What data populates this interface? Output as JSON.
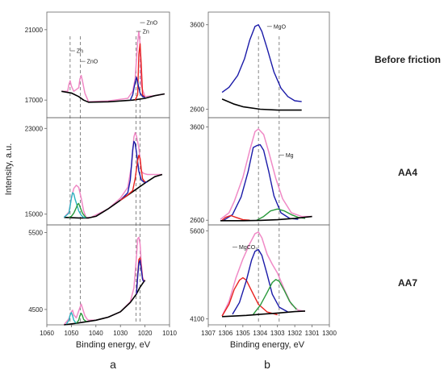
{
  "figure": {
    "panel_letters": [
      "a",
      "b"
    ],
    "row_labels": [
      "Before friction",
      "AA4",
      "AA7"
    ],
    "y_axis_label": "Intensity, a.u.",
    "x_axis_label_left": "Binding energy, eV",
    "x_axis_label_right": "Binding energy, eV"
  },
  "colors": {
    "envelope": "#f08ac6",
    "background": "#000000",
    "component_red": "#e8221f",
    "component_blue": "#1a1aa8",
    "component_green": "#2a9a3c",
    "component_cyan": "#2ab5c0",
    "guide": "#555555"
  },
  "chart_data": [
    {
      "type": "line",
      "panel": "a",
      "row": "Before friction",
      "xlim": [
        1060,
        1010
      ],
      "ylim": [
        16000,
        22000
      ],
      "yticks": [
        17000,
        21000
      ],
      "yticklabels": [
        "17000",
        "21000"
      ],
      "annotations": [
        {
          "text": "Zn",
          "x": 1050.5,
          "y": 19800
        },
        {
          "text": "ZnO",
          "x": 1046.3,
          "y": 19200
        },
        {
          "text": "Zn",
          "x": 1023.6,
          "y": 20900
        },
        {
          "text": "ZnO",
          "x": 1022,
          "y": 21400
        }
      ],
      "series": [
        {
          "role": "envelope",
          "color": "#f08ac6",
          "x": [
            1054,
            1051.5,
            1051,
            1050.5,
            1050,
            1049,
            1047,
            1046.5,
            1046,
            1045.5,
            1044.5,
            1043,
            1035,
            1027,
            1025,
            1024,
            1023,
            1022.5,
            1022,
            1021.5,
            1020,
            1016,
            1012
          ],
          "y": [
            17500,
            17500,
            17900,
            18100,
            17800,
            17500,
            17700,
            18200,
            18400,
            18100,
            17400,
            16900,
            16950,
            17100,
            17500,
            18200,
            20300,
            20900,
            20200,
            17800,
            17200,
            17250,
            17350
          ]
        },
        {
          "role": "background",
          "color": "#000000",
          "x": [
            1054,
            1050,
            1047,
            1045,
            1043,
            1035,
            1025,
            1020,
            1016,
            1012
          ],
          "y": [
            17500,
            17400,
            17200,
            17000,
            16880,
            16900,
            17000,
            17100,
            17250,
            17350
          ]
        },
        {
          "role": "component",
          "color": "#e8221f",
          "x": [
            1024,
            1023,
            1022.5,
            1022,
            1021.5,
            1021,
            1020
          ],
          "y": [
            17000,
            17300,
            19600,
            20200,
            19000,
            17300,
            17150
          ]
        },
        {
          "role": "component",
          "color": "#1a1aa8",
          "x": [
            1026,
            1025,
            1024,
            1023.5,
            1023,
            1022,
            1021,
            1020
          ],
          "y": [
            17000,
            17300,
            18000,
            18300,
            18000,
            17400,
            17200,
            17150
          ]
        }
      ]
    },
    {
      "type": "line",
      "panel": "a",
      "row": "AA4",
      "xlim": [
        1060,
        1010
      ],
      "ylim": [
        14000,
        24000
      ],
      "yticks": [
        15000,
        23000
      ],
      "yticklabels": [
        "15000",
        "23000"
      ],
      "annotations": [],
      "series": [
        {
          "role": "envelope",
          "color": "#f08ac6",
          "x": [
            1053,
            1051,
            1050,
            1049,
            1048,
            1047,
            1046,
            1045,
            1044,
            1042,
            1035,
            1030,
            1027,
            1025.5,
            1024.5,
            1024,
            1023.5,
            1022.5,
            1021.5,
            1020.5,
            1019,
            1016,
            1013
          ],
          "y": [
            14700,
            15200,
            16500,
            17400,
            17700,
            17500,
            16500,
            15300,
            14700,
            14700,
            15500,
            16500,
            17500,
            19500,
            22200,
            22600,
            22300,
            21200,
            19000,
            18800,
            18700,
            18700,
            18700
          ]
        },
        {
          "role": "background",
          "color": "#000000",
          "x": [
            1053,
            1047,
            1043,
            1040,
            1035,
            1030,
            1025,
            1020,
            1016,
            1013
          ],
          "y": [
            14700,
            14650,
            14650,
            14800,
            15500,
            16300,
            17100,
            17900,
            18500,
            18700
          ]
        },
        {
          "role": "component",
          "color": "#1a1aa8",
          "x": [
            1030,
            1027,
            1026,
            1025,
            1024.5,
            1024,
            1023.5,
            1022.5,
            1021.5,
            1020.5,
            1019
          ],
          "y": [
            16300,
            17000,
            18200,
            21000,
            21800,
            21600,
            20800,
            19000,
            18200,
            18000,
            18000
          ]
        },
        {
          "role": "component",
          "color": "#e8221f",
          "x": [
            1030,
            1027,
            1025,
            1024,
            1023,
            1022.5,
            1022,
            1021.5,
            1021,
            1020
          ],
          "y": [
            16300,
            16800,
            17200,
            18300,
            20000,
            20500,
            20200,
            19200,
            18300,
            18000
          ]
        },
        {
          "role": "component",
          "color": "#2ab5c0",
          "x": [
            1053,
            1051,
            1050,
            1049.5,
            1049,
            1048.5,
            1047.5,
            1047,
            1046,
            1045,
            1044
          ],
          "y": [
            14700,
            15100,
            16500,
            17000,
            16900,
            16400,
            15700,
            15300,
            14900,
            14700,
            14700
          ]
        },
        {
          "role": "component",
          "color": "#2a9a3c",
          "x": [
            1051,
            1050,
            1049,
            1048,
            1047.5,
            1047,
            1046.5,
            1045.5,
            1044.5,
            1044
          ],
          "y": [
            14700,
            14800,
            15100,
            15600,
            15900,
            16000,
            15700,
            15100,
            14800,
            14700
          ]
        }
      ]
    },
    {
      "type": "line",
      "panel": "a",
      "row": "AA7",
      "xlim": [
        1060,
        1010
      ],
      "ylim": [
        4300,
        5600
      ],
      "yticks": [
        4500,
        5500
      ],
      "yticklabels": [
        "4500",
        "5500"
      ],
      "annotations": [],
      "series": [
        {
          "role": "envelope",
          "color": "#f08ac6",
          "x": [
            1053,
            1051,
            1050,
            1049.5,
            1049,
            1048,
            1047,
            1046,
            1045.5,
            1044.5,
            1043.5,
            1043,
            1040,
            1035,
            1030,
            1026,
            1024.5,
            1023.5,
            1023,
            1022.5,
            1022,
            1021.5,
            1021,
            1020.5,
            1020
          ],
          "y": [
            4300,
            4380,
            4470,
            4490,
            4430,
            4390,
            4480,
            4570,
            4520,
            4420,
            4370,
            4360,
            4360,
            4400,
            4470,
            4600,
            4780,
            5180,
            5420,
            5440,
            5350,
            5100,
            4920,
            4880,
            4880
          ]
        },
        {
          "role": "background",
          "color": "#000000",
          "x": [
            1053,
            1048,
            1043,
            1040,
            1035,
            1030,
            1026,
            1023.5,
            1022,
            1020.5,
            1020
          ],
          "y": [
            4300,
            4320,
            4345,
            4360,
            4400,
            4470,
            4590,
            4700,
            4790,
            4860,
            4880
          ]
        },
        {
          "role": "component",
          "color": "#e8221f",
          "x": [
            1023.5,
            1023,
            1022.5,
            1022,
            1021.5,
            1021,
            1020.5
          ],
          "y": [
            4700,
            4950,
            5150,
            5170,
            5050,
            4900,
            4860
          ]
        },
        {
          "role": "component",
          "color": "#1a1aa8",
          "x": [
            1023.5,
            1023,
            1022.5,
            1022,
            1021.5,
            1021,
            1020.5
          ],
          "y": [
            4700,
            4920,
            5100,
            5140,
            5020,
            4890,
            4860
          ]
        },
        {
          "role": "component",
          "color": "#2ab5c0",
          "x": [
            1052,
            1051,
            1050.5,
            1050,
            1049.5,
            1049,
            1048
          ],
          "y": [
            4310,
            4360,
            4430,
            4460,
            4420,
            4360,
            4320
          ]
        },
        {
          "role": "component",
          "color": "#2a9a3c",
          "x": [
            1048,
            1047,
            1046.5,
            1046,
            1045.5,
            1045,
            1044
          ],
          "y": [
            4320,
            4360,
            4420,
            4450,
            4420,
            4370,
            4345
          ]
        }
      ]
    },
    {
      "type": "line",
      "panel": "b",
      "row": "Before friction",
      "xlim": [
        1307,
        1300
      ],
      "ylim": [
        2500,
        3750
      ],
      "yticks": [
        2600,
        3600
      ],
      "yticklabels": [
        "2600",
        "3600"
      ],
      "annotations": [
        {
          "text": "MgO",
          "x": 1303.6,
          "y": 3580
        }
      ],
      "series": [
        {
          "role": "component",
          "color": "#1a1aa8",
          "x": [
            1306.2,
            1305.8,
            1305.3,
            1304.9,
            1304.6,
            1304.3,
            1304.1,
            1303.9,
            1303.6,
            1303.2,
            1302.8,
            1302.4,
            1302,
            1301.6
          ],
          "y": [
            2800,
            2860,
            3000,
            3200,
            3420,
            3580,
            3600,
            3520,
            3320,
            3040,
            2850,
            2750,
            2700,
            2690
          ]
        },
        {
          "role": "background",
          "color": "#000000",
          "x": [
            1306.2,
            1305.5,
            1305,
            1304,
            1303,
            1302,
            1301.6
          ],
          "y": [
            2720,
            2660,
            2630,
            2600,
            2590,
            2590,
            2590
          ]
        }
      ]
    },
    {
      "type": "line",
      "panel": "b",
      "row": "AA4",
      "xlim": [
        1307,
        1300
      ],
      "ylim": [
        2550,
        3700
      ],
      "yticks": [
        2600,
        3600
      ],
      "yticklabels": [
        "2600",
        "3600"
      ],
      "annotations": [
        {
          "text": "Mg",
          "x": 1302.9,
          "y": 3300
        }
      ],
      "series": [
        {
          "role": "envelope",
          "color": "#f08ac6",
          "x": [
            1306.3,
            1305.8,
            1305.5,
            1305,
            1304.6,
            1304.3,
            1304.1,
            1303.8,
            1303.5,
            1303.1,
            1302.7,
            1302.2,
            1301.6,
            1301
          ],
          "y": [
            2610,
            2680,
            2800,
            3060,
            3350,
            3550,
            3580,
            3520,
            3330,
            3050,
            2830,
            2680,
            2640,
            2640
          ]
        },
        {
          "role": "component",
          "color": "#1a1aa8",
          "x": [
            1306.1,
            1305.6,
            1305.1,
            1304.7,
            1304.4,
            1304.2,
            1304,
            1303.8,
            1303.5,
            1303.2,
            1302.8,
            1302.3,
            1301.8
          ],
          "y": [
            2600,
            2660,
            2850,
            3120,
            3380,
            3400,
            3410,
            3350,
            3120,
            2860,
            2680,
            2620,
            2610
          ]
        },
        {
          "role": "component",
          "color": "#2a9a3c",
          "x": [
            1304.2,
            1303.8,
            1303.4,
            1303,
            1302.6,
            1302.2,
            1301.8,
            1301.4
          ],
          "y": [
            2600,
            2640,
            2700,
            2720,
            2700,
            2660,
            2630,
            2620
          ]
        },
        {
          "role": "component",
          "color": "#e8221f",
          "x": [
            1306.2,
            1306,
            1305.7,
            1305.4,
            1305,
            1304.6
          ],
          "y": [
            2600,
            2630,
            2650,
            2630,
            2605,
            2600
          ]
        },
        {
          "role": "background",
          "color": "#000000",
          "x": [
            1306.3,
            1305,
            1304,
            1303,
            1302,
            1301
          ],
          "y": [
            2595,
            2595,
            2598,
            2605,
            2620,
            2640
          ]
        }
      ]
    },
    {
      "type": "line",
      "panel": "b",
      "row": "AA7",
      "xlim": [
        1307,
        1300
      ],
      "ylim": [
        4000,
        5700
      ],
      "yticks": [
        4100,
        5600
      ],
      "yticklabels": [
        "4100",
        "5600"
      ],
      "annotations": [
        {
          "text": "MgCO₃",
          "x": 1305.6,
          "y": 5320
        }
      ],
      "series": [
        {
          "role": "envelope",
          "color": "#f08ac6",
          "x": [
            1306.2,
            1305.8,
            1305.4,
            1305,
            1304.6,
            1304.3,
            1304.1,
            1303.9,
            1303.6,
            1303.3,
            1303,
            1302.6,
            1302.2,
            1301.8,
            1301.4
          ],
          "y": [
            4150,
            4400,
            4800,
            5120,
            5380,
            5550,
            5580,
            5480,
            5200,
            5030,
            4880,
            4600,
            4350,
            4250,
            4230
          ]
        },
        {
          "role": "component",
          "color": "#e8221f",
          "x": [
            1306.2,
            1305.8,
            1305.5,
            1305.2,
            1305,
            1304.8,
            1304.5,
            1304.1,
            1303.6,
            1303
          ],
          "y": [
            4150,
            4350,
            4600,
            4760,
            4800,
            4760,
            4580,
            4350,
            4220,
            4170
          ]
        },
        {
          "role": "component",
          "color": "#1a1aa8",
          "x": [
            1305.6,
            1305.2,
            1304.8,
            1304.5,
            1304.3,
            1304.1,
            1303.9,
            1303.6,
            1303.3,
            1302.9,
            1302.4
          ],
          "y": [
            4180,
            4380,
            4750,
            5100,
            5250,
            5280,
            5180,
            4860,
            4520,
            4300,
            4220
          ]
        },
        {
          "role": "component",
          "color": "#2a9a3c",
          "x": [
            1304.4,
            1304,
            1303.6,
            1303.3,
            1303.1,
            1302.9,
            1302.6,
            1302.3,
            1301.9
          ],
          "y": [
            4180,
            4330,
            4550,
            4720,
            4770,
            4740,
            4580,
            4400,
            4260
          ]
        },
        {
          "role": "background",
          "color": "#000000",
          "x": [
            1306.2,
            1305.5,
            1304.8,
            1304,
            1303,
            1302,
            1301.4
          ],
          "y": [
            4140,
            4150,
            4160,
            4180,
            4200,
            4225,
            4235
          ]
        }
      ]
    }
  ],
  "x_axes": [
    {
      "panel": "a",
      "ticks": [
        1060,
        1050,
        1040,
        1030,
        1020,
        1010
      ],
      "ticklabels": [
        "1060",
        "1050",
        "1040",
        "1030",
        "1020",
        "1010"
      ]
    },
    {
      "panel": "b",
      "ticks": [
        1307,
        1306,
        1305,
        1304,
        1303,
        1302,
        1301,
        1300
      ],
      "ticklabels": [
        "1307",
        "1306",
        "1305",
        "1304",
        "1303",
        "1302",
        "1301",
        "1300"
      ]
    }
  ],
  "guides": [
    {
      "panel": "a",
      "x": [
        1050.5,
        1046.3,
        1023.6,
        1022
      ]
    },
    {
      "panel": "b",
      "x": [
        1304.1,
        1302.9
      ]
    }
  ]
}
